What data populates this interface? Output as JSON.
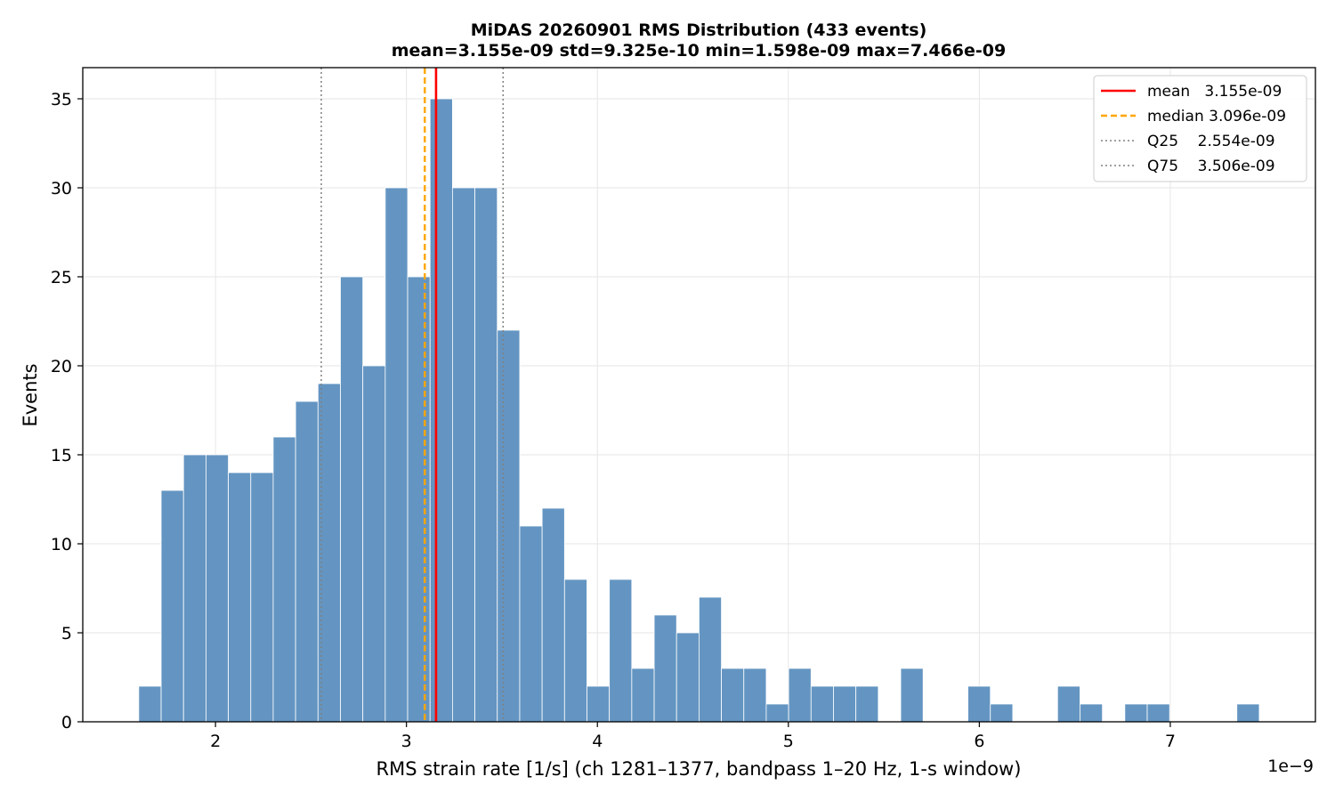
{
  "chart_data": {
    "type": "bar",
    "title": "MiDAS 20260901  RMS Distribution  (433 events)",
    "subtitle": "mean=3.155e-09  std=9.325e-10  min=1.598e-09  max=7.466e-09",
    "xlabel": "RMS strain rate [1/s]  (ch 1281–1377, bandpass 1–20 Hz, 1-s window)",
    "ylabel": "Events",
    "x_offset_label": "1e−9",
    "xlim": [
      1.305,
      7.76
    ],
    "ylim": [
      0,
      36.75
    ],
    "xticks": [
      2,
      3,
      4,
      5,
      6,
      7
    ],
    "yticks": [
      0,
      5,
      10,
      15,
      20,
      25,
      30,
      35
    ],
    "grid": true,
    "legend_position": "top-right",
    "bin_start": 1.598,
    "bin_width": 0.11736,
    "counts": [
      2,
      13,
      15,
      15,
      14,
      14,
      16,
      18,
      19,
      25,
      20,
      30,
      25,
      35,
      30,
      30,
      22,
      11,
      12,
      8,
      2,
      8,
      3,
      6,
      5,
      7,
      3,
      3,
      1,
      3,
      2,
      2,
      2,
      0,
      3,
      0,
      0,
      2,
      1,
      0,
      0,
      2,
      1,
      0,
      1,
      1,
      0,
      0,
      0,
      1
    ],
    "bar_color": "#6495c2",
    "lines": [
      {
        "label": "mean   3.155e-09",
        "value": 3.155,
        "color": "#ff0000",
        "style": "solid"
      },
      {
        "label": "median 3.096e-09",
        "value": 3.096,
        "color": "#ffa500",
        "style": "dashed"
      },
      {
        "label": "Q25    2.554e-09",
        "value": 2.554,
        "color": "#808080",
        "style": "dotted"
      },
      {
        "label": "Q75    3.506e-09",
        "value": 3.506,
        "color": "#808080",
        "style": "dotted"
      }
    ]
  }
}
